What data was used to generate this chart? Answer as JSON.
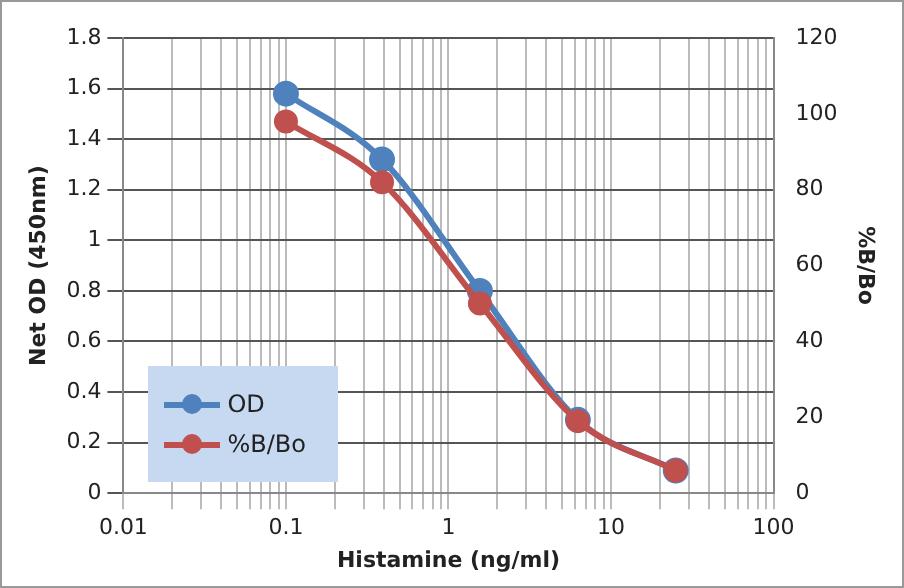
{
  "chart_data": {
    "type": "line",
    "xlabel": "Histamine (ng/ml)",
    "ylabel": "Net OD (450nm)",
    "y2label": "%B/Bo",
    "x": [
      0.1,
      0.39,
      1.56,
      6.25,
      25
    ],
    "series": [
      {
        "name": "OD",
        "color": "#4f81bd",
        "values": [
          1.58,
          1.32,
          0.8,
          0.29,
          0.09
        ]
      },
      {
        "name": "%B/Bo",
        "color": "#c0504d",
        "axis": "y2",
        "values": [
          98,
          82,
          50,
          19,
          6
        ]
      }
    ],
    "log": "x",
    "xlim": [
      0.01,
      100
    ],
    "xticks": [
      0.01,
      0.1,
      1,
      10,
      100
    ],
    "ylim": [
      0,
      1.8
    ],
    "yticks": [
      0,
      0.2,
      0.4,
      0.6,
      0.8,
      1,
      1.2,
      1.4,
      1.6,
      1.8
    ],
    "y2lim": [
      0,
      120
    ],
    "y2ticks": [
      0,
      20,
      40,
      60,
      80,
      100,
      120
    ],
    "grid": true,
    "legend": "bottom left",
    "marker": "circle",
    "line_style": "solid"
  }
}
